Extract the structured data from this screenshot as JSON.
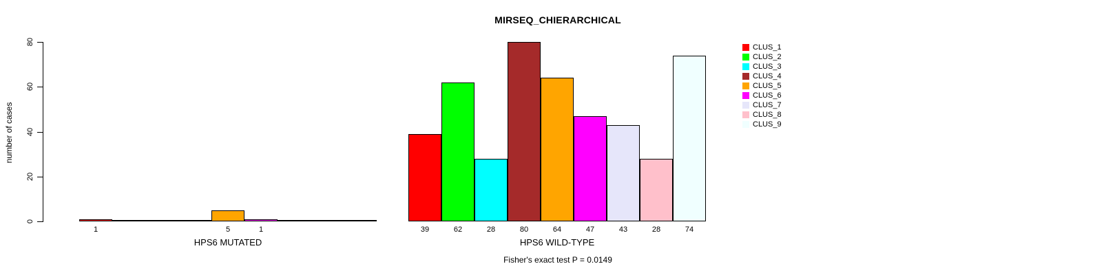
{
  "figure": {
    "title": "MIRSEQ_CHIERARCHICAL",
    "ylabel": "number of cases",
    "annotation": "Fisher's exact test P = 0.0149"
  },
  "chart_data": {
    "type": "bar",
    "title": "MIRSEQ_CHIERARCHICAL",
    "xlabel": "",
    "ylabel": "number of cases",
    "ylim": [
      0,
      80
    ],
    "yticks": [
      0,
      20,
      40,
      60,
      80
    ],
    "grid": false,
    "legend_position": "right",
    "annotation": "Fisher's exact test P = 0.0149",
    "clusters": [
      {
        "name": "CLUS_1",
        "color": "#FF0000"
      },
      {
        "name": "CLUS_2",
        "color": "#00FF00"
      },
      {
        "name": "CLUS_3",
        "color": "#00FFFF"
      },
      {
        "name": "CLUS_4",
        "color": "#A52A2A"
      },
      {
        "name": "CLUS_5",
        "color": "#FFA500"
      },
      {
        "name": "CLUS_6",
        "color": "#FF00FF"
      },
      {
        "name": "CLUS_7",
        "color": "#E6E6FA"
      },
      {
        "name": "CLUS_8",
        "color": "#FFC0CB"
      },
      {
        "name": "CLUS_9",
        "color": "#F0FFFF"
      }
    ],
    "groups": [
      {
        "label": "HPS6 MUTATED",
        "values": [
          1,
          0,
          0,
          0,
          5,
          1,
          0,
          0,
          0
        ]
      },
      {
        "label": "HPS6 WILD-TYPE",
        "values": [
          39,
          62,
          28,
          80,
          64,
          47,
          43,
          28,
          74
        ]
      }
    ]
  }
}
